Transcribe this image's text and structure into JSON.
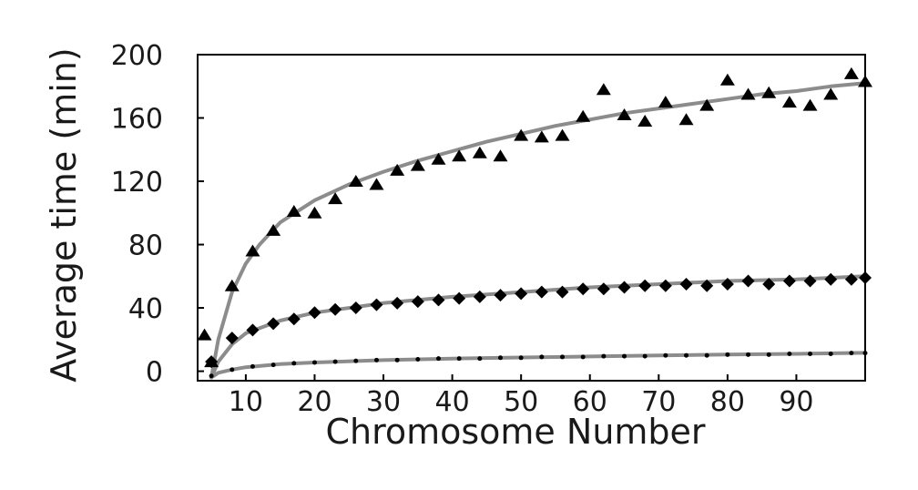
{
  "chart_data": {
    "type": "scatter",
    "title": "",
    "xlabel": "Chromosome Number",
    "ylabel": "Average time (min)",
    "xlim": [
      3,
      100
    ],
    "ylim": [
      -6,
      200
    ],
    "xticks": [
      10,
      20,
      30,
      40,
      50,
      60,
      70,
      80,
      90
    ],
    "yticks": [
      0,
      40,
      80,
      120,
      160,
      200
    ],
    "grid": false,
    "legend": "none",
    "colors": {
      "markers": "#000000",
      "fit_line": "#8c8c8c",
      "axes": "#000000"
    },
    "series": [
      {
        "marker": "triangle",
        "x": [
          4,
          5,
          8,
          11,
          14,
          17,
          20,
          23,
          26,
          29,
          32,
          35,
          38,
          41,
          44,
          47,
          50,
          53,
          56,
          59,
          62,
          65,
          68,
          71,
          74,
          77,
          80,
          83,
          86,
          89,
          92,
          95,
          98,
          100
        ],
        "y": [
          23,
          6,
          54,
          76,
          89,
          101,
          100,
          109,
          120,
          118,
          127,
          130,
          134,
          136,
          138,
          136,
          149,
          148,
          149,
          161,
          178,
          162,
          158,
          170,
          159,
          168,
          184,
          175,
          176,
          170,
          168,
          175,
          188,
          183
        ],
        "fit": {
          "x": [
            5,
            6,
            8,
            10,
            12,
            15,
            20,
            25,
            30,
            35,
            40,
            45,
            50,
            55,
            60,
            65,
            70,
            75,
            80,
            85,
            90,
            95,
            100
          ],
          "y": [
            -4,
            20,
            50,
            68,
            80,
            94,
            108,
            118,
            126,
            133,
            139,
            145,
            150,
            155,
            159,
            163,
            166,
            169,
            172,
            175,
            177,
            180,
            182
          ]
        }
      },
      {
        "marker": "diamond",
        "x": [
          5,
          8,
          11,
          14,
          17,
          20,
          23,
          26,
          29,
          32,
          35,
          38,
          41,
          44,
          47,
          50,
          53,
          56,
          59,
          62,
          65,
          68,
          71,
          74,
          77,
          80,
          83,
          86,
          89,
          92,
          95,
          98,
          100
        ],
        "y": [
          6,
          21,
          26,
          30,
          33,
          37,
          39,
          40,
          42,
          43,
          44,
          45,
          46,
          47,
          48,
          49,
          50,
          50,
          52,
          52,
          53,
          54,
          54,
          55,
          54,
          55,
          57,
          55,
          57,
          57,
          58,
          58,
          59
        ],
        "fit": {
          "x": [
            5,
            6,
            8,
            10,
            15,
            20,
            25,
            30,
            40,
            50,
            60,
            70,
            80,
            90,
            100
          ],
          "y": [
            -4,
            6,
            17,
            24,
            32,
            37,
            40,
            43,
            47,
            50,
            53,
            55,
            57,
            58,
            60
          ]
        }
      },
      {
        "marker": "dot",
        "x": [
          5,
          8,
          11,
          14,
          17,
          20,
          23,
          26,
          29,
          32,
          35,
          38,
          41,
          44,
          47,
          50,
          53,
          56,
          59,
          62,
          65,
          68,
          71,
          74,
          77,
          80,
          83,
          86,
          89,
          92,
          95,
          98,
          100
        ],
        "y": [
          -3,
          1,
          3,
          4,
          5,
          5.5,
          6,
          6.5,
          7,
          7,
          7.5,
          8,
          8,
          8,
          8.5,
          8.5,
          9,
          9,
          9,
          9.5,
          9.5,
          9.5,
          10,
          10,
          10,
          10.5,
          10.5,
          10.5,
          11,
          11,
          11,
          11.5,
          11.5
        ],
        "fit": {
          "x": [
            5,
            6,
            8,
            10,
            15,
            20,
            30,
            40,
            50,
            60,
            70,
            80,
            90,
            100
          ],
          "y": [
            -4,
            -1,
            1,
            2.5,
            4.5,
            5.5,
            7,
            8,
            8.7,
            9.3,
            10,
            10.5,
            11,
            11.6
          ]
        }
      }
    ]
  }
}
